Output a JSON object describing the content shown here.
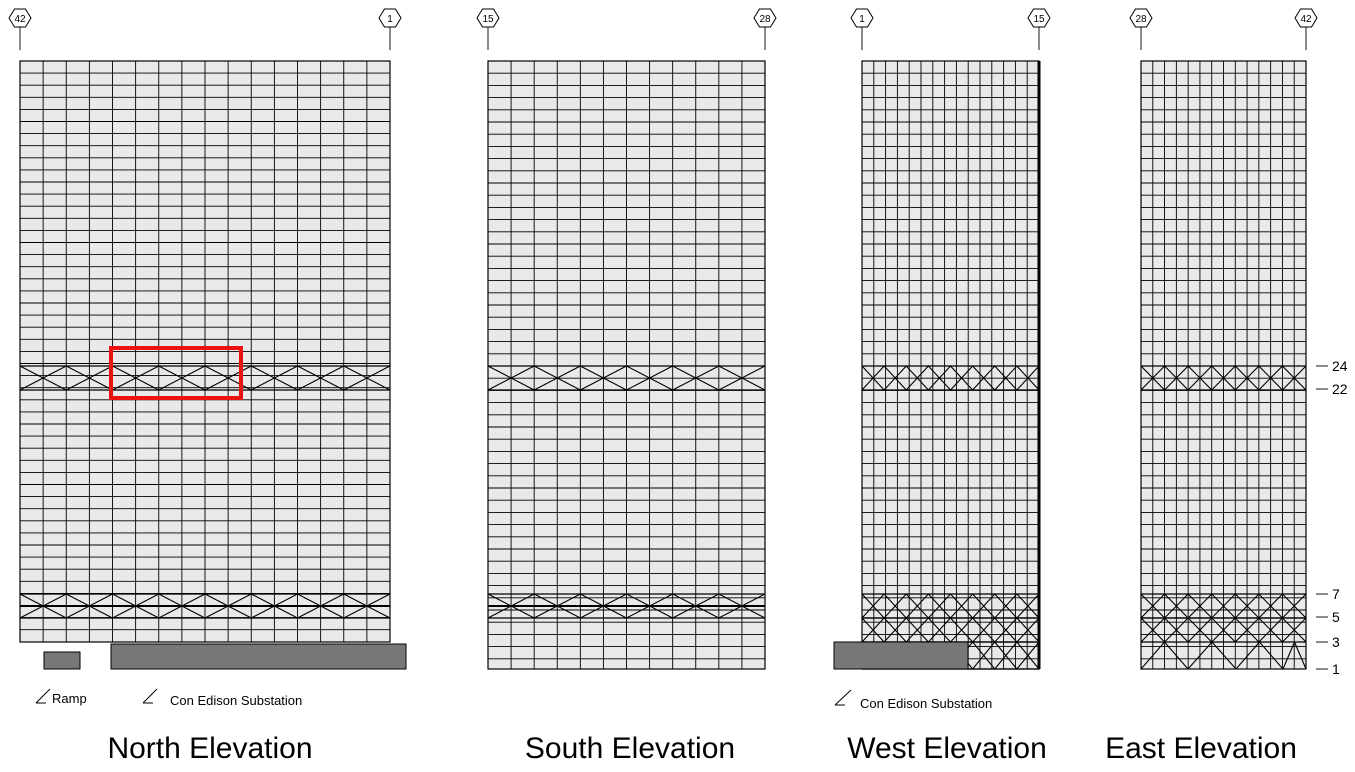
{
  "elevations": [
    {
      "id": "north",
      "title": "North Elevation",
      "gridline_left": "42",
      "gridline_right": "1",
      "annotations": [
        "Ramp",
        "Con Edison Substation"
      ]
    },
    {
      "id": "south",
      "title": "South Elevation",
      "gridline_left": "15",
      "gridline_right": "28",
      "annotations": []
    },
    {
      "id": "west",
      "title": "West Elevation",
      "gridline_left": "1",
      "gridline_right": "15",
      "annotations": [
        "Con Edison Substation"
      ]
    },
    {
      "id": "east",
      "title": "East Elevation",
      "gridline_left": "28",
      "gridline_right": "42",
      "annotations": []
    }
  ],
  "floor_labels": [
    "24",
    "22",
    "7",
    "5",
    "3",
    "1"
  ],
  "highlight_color": "#ee1111",
  "facade_fill": "#e9e9e9",
  "substation_fill": "#777777"
}
